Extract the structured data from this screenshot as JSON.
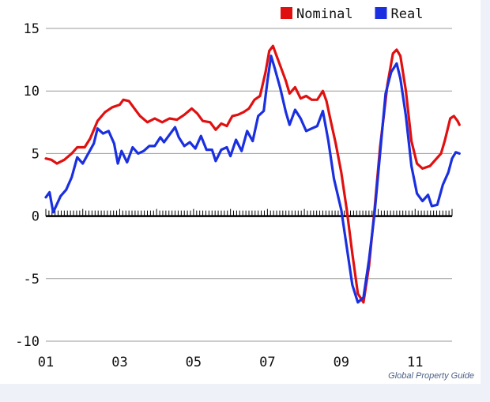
{
  "source": "Global Property Guide",
  "chart_data": {
    "type": "line",
    "title": "",
    "xlabel": "",
    "ylabel": "",
    "ylim": [
      -10,
      15
    ],
    "xlim": [
      2001.0,
      2012.0
    ],
    "yticks": [
      -10,
      -5,
      0,
      5,
      10,
      15
    ],
    "xticks": [
      {
        "value": 2001,
        "label": "01"
      },
      {
        "value": 2003,
        "label": "03"
      },
      {
        "value": 2005,
        "label": "05"
      },
      {
        "value": 2007,
        "label": "07"
      },
      {
        "value": 2009,
        "label": "09"
      },
      {
        "value": 2011,
        "label": "11"
      }
    ],
    "grid": true,
    "legend": "top-right",
    "series": [
      {
        "name": "Nominal",
        "color": "#e01010",
        "points": [
          [
            2001.0,
            4.6
          ],
          [
            2001.15,
            4.5
          ],
          [
            2001.3,
            4.2
          ],
          [
            2001.5,
            4.5
          ],
          [
            2001.7,
            5.0
          ],
          [
            2001.85,
            5.5
          ],
          [
            2002.05,
            5.5
          ],
          [
            2002.2,
            6.2
          ],
          [
            2002.4,
            7.6
          ],
          [
            2002.6,
            8.3
          ],
          [
            2002.8,
            8.7
          ],
          [
            2003.0,
            8.9
          ],
          [
            2003.1,
            9.3
          ],
          [
            2003.25,
            9.2
          ],
          [
            2003.4,
            8.6
          ],
          [
            2003.55,
            8.0
          ],
          [
            2003.75,
            7.5
          ],
          [
            2003.95,
            7.8
          ],
          [
            2004.15,
            7.5
          ],
          [
            2004.35,
            7.8
          ],
          [
            2004.55,
            7.7
          ],
          [
            2004.75,
            8.1
          ],
          [
            2004.95,
            8.6
          ],
          [
            2005.1,
            8.2
          ],
          [
            2005.25,
            7.6
          ],
          [
            2005.45,
            7.5
          ],
          [
            2005.6,
            6.9
          ],
          [
            2005.75,
            7.4
          ],
          [
            2005.9,
            7.2
          ],
          [
            2006.05,
            8.0
          ],
          [
            2006.2,
            8.1
          ],
          [
            2006.35,
            8.3
          ],
          [
            2006.5,
            8.6
          ],
          [
            2006.65,
            9.3
          ],
          [
            2006.8,
            9.6
          ],
          [
            2006.95,
            11.5
          ],
          [
            2007.05,
            13.2
          ],
          [
            2007.15,
            13.6
          ],
          [
            2007.25,
            12.8
          ],
          [
            2007.35,
            12.0
          ],
          [
            2007.5,
            10.8
          ],
          [
            2007.6,
            9.8
          ],
          [
            2007.75,
            10.3
          ],
          [
            2007.9,
            9.4
          ],
          [
            2008.05,
            9.6
          ],
          [
            2008.2,
            9.3
          ],
          [
            2008.35,
            9.3
          ],
          [
            2008.5,
            10.0
          ],
          [
            2008.6,
            9.2
          ],
          [
            2008.7,
            7.8
          ],
          [
            2008.85,
            5.8
          ],
          [
            2009.0,
            3.5
          ],
          [
            2009.15,
            0.5
          ],
          [
            2009.3,
            -3.0
          ],
          [
            2009.45,
            -6.2
          ],
          [
            2009.6,
            -6.9
          ],
          [
            2009.75,
            -4.0
          ],
          [
            2009.9,
            0.5
          ],
          [
            2010.05,
            5.5
          ],
          [
            2010.25,
            10.5
          ],
          [
            2010.4,
            13.0
          ],
          [
            2010.5,
            13.3
          ],
          [
            2010.6,
            12.8
          ],
          [
            2010.75,
            10.0
          ],
          [
            2010.9,
            6.0
          ],
          [
            2011.05,
            4.2
          ],
          [
            2011.2,
            3.8
          ],
          [
            2011.4,
            4.0
          ],
          [
            2011.55,
            4.5
          ],
          [
            2011.7,
            5.0
          ],
          [
            2011.8,
            6.0
          ],
          [
            2011.95,
            7.8
          ],
          [
            2012.05,
            8.0
          ],
          [
            2012.15,
            7.6
          ],
          [
            2012.2,
            7.3
          ]
        ]
      },
      {
        "name": "Real",
        "color": "#1a2fe0",
        "points": [
          [
            2001.0,
            1.5
          ],
          [
            2001.1,
            1.9
          ],
          [
            2001.2,
            0.3
          ],
          [
            2001.4,
            1.6
          ],
          [
            2001.55,
            2.1
          ],
          [
            2001.7,
            3.1
          ],
          [
            2001.85,
            4.7
          ],
          [
            2002.0,
            4.2
          ],
          [
            2002.15,
            5.0
          ],
          [
            2002.3,
            5.8
          ],
          [
            2002.4,
            7.0
          ],
          [
            2002.55,
            6.6
          ],
          [
            2002.7,
            6.8
          ],
          [
            2002.85,
            5.8
          ],
          [
            2002.95,
            4.2
          ],
          [
            2003.05,
            5.2
          ],
          [
            2003.2,
            4.3
          ],
          [
            2003.35,
            5.5
          ],
          [
            2003.5,
            5.0
          ],
          [
            2003.65,
            5.2
          ],
          [
            2003.8,
            5.6
          ],
          [
            2003.95,
            5.6
          ],
          [
            2004.1,
            6.3
          ],
          [
            2004.2,
            5.9
          ],
          [
            2004.35,
            6.5
          ],
          [
            2004.5,
            7.1
          ],
          [
            2004.6,
            6.3
          ],
          [
            2004.75,
            5.6
          ],
          [
            2004.9,
            5.9
          ],
          [
            2005.05,
            5.4
          ],
          [
            2005.2,
            6.4
          ],
          [
            2005.35,
            5.3
          ],
          [
            2005.5,
            5.3
          ],
          [
            2005.6,
            4.4
          ],
          [
            2005.75,
            5.3
          ],
          [
            2005.9,
            5.5
          ],
          [
            2006.0,
            4.8
          ],
          [
            2006.15,
            6.1
          ],
          [
            2006.3,
            5.2
          ],
          [
            2006.45,
            6.8
          ],
          [
            2006.6,
            6.0
          ],
          [
            2006.75,
            8.0
          ],
          [
            2006.9,
            8.4
          ],
          [
            2007.0,
            10.8
          ],
          [
            2007.1,
            12.8
          ],
          [
            2007.2,
            11.8
          ],
          [
            2007.35,
            10.2
          ],
          [
            2007.5,
            8.3
          ],
          [
            2007.6,
            7.3
          ],
          [
            2007.75,
            8.5
          ],
          [
            2007.9,
            7.8
          ],
          [
            2008.05,
            6.8
          ],
          [
            2008.2,
            7.0
          ],
          [
            2008.35,
            7.2
          ],
          [
            2008.5,
            8.4
          ],
          [
            2008.65,
            6.0
          ],
          [
            2008.8,
            3.0
          ],
          [
            2009.0,
            0.5
          ],
          [
            2009.15,
            -2.5
          ],
          [
            2009.3,
            -5.5
          ],
          [
            2009.45,
            -6.9
          ],
          [
            2009.6,
            -6.5
          ],
          [
            2009.75,
            -3.5
          ],
          [
            2009.9,
            0.2
          ],
          [
            2010.05,
            5.0
          ],
          [
            2010.2,
            9.8
          ],
          [
            2010.35,
            11.5
          ],
          [
            2010.5,
            12.2
          ],
          [
            2010.6,
            11.0
          ],
          [
            2010.75,
            8.0
          ],
          [
            2010.9,
            4.0
          ],
          [
            2011.05,
            1.8
          ],
          [
            2011.2,
            1.2
          ],
          [
            2011.35,
            1.7
          ],
          [
            2011.45,
            0.8
          ],
          [
            2011.6,
            0.9
          ],
          [
            2011.75,
            2.5
          ],
          [
            2011.9,
            3.5
          ],
          [
            2012.0,
            4.6
          ],
          [
            2012.1,
            5.1
          ],
          [
            2012.2,
            5.0
          ]
        ]
      }
    ]
  }
}
